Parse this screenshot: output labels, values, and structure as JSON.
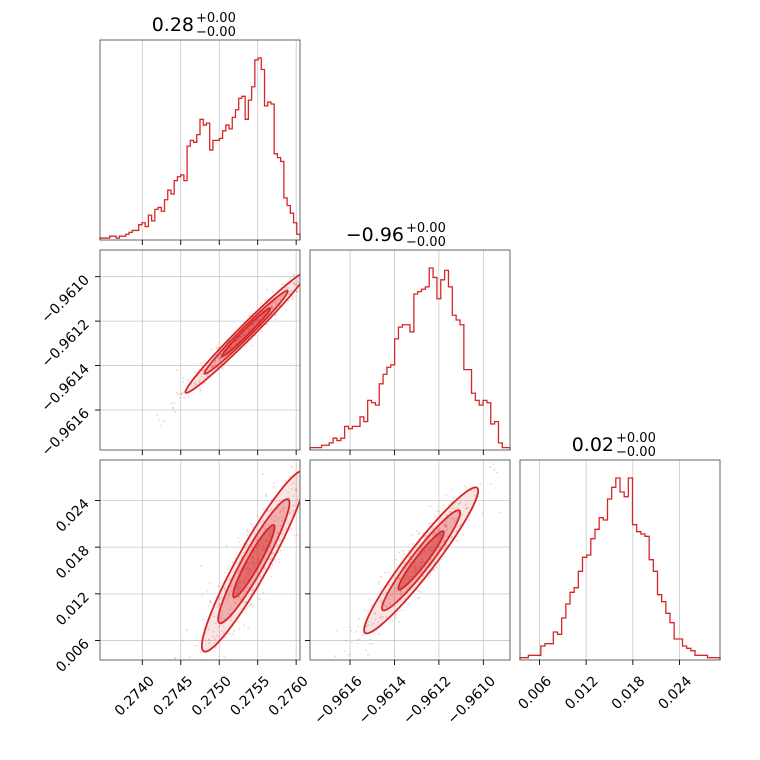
{
  "chart_data": {
    "type": "corner",
    "color": "#d62728",
    "parameters": [
      {
        "title": "0.28",
        "sup": "+0.00",
        "sub": "−0.00",
        "range": [
          0.27345,
          0.27605
        ],
        "ticks": [
          0.274,
          0.2745,
          0.275,
          0.2755,
          0.276
        ],
        "tick_labels": [
          "0.2740",
          "0.2745",
          "0.2750",
          "0.2755",
          "0.2760"
        ]
      },
      {
        "title": "−0.96",
        "sup": "+0.00",
        "sub": "−0.00",
        "range": [
          -0.96178,
          -0.96088
        ],
        "ticks": [
          -0.9616,
          -0.9614,
          -0.9612,
          -0.961
        ],
        "tick_labels": [
          "−0.9616",
          "−0.9614",
          "−0.9612",
          "−0.9610"
        ]
      },
      {
        "title": "0.02",
        "sup": "+0.00",
        "sub": "−0.00",
        "range": [
          0.0035,
          0.0292
        ],
        "ticks": [
          0.006,
          0.012,
          0.018,
          0.024
        ],
        "tick_labels": [
          "0.006",
          "0.012",
          "0.018",
          "0.024"
        ]
      }
    ],
    "histograms": [
      {
        "param": 0,
        "counts": [
          1,
          1,
          1,
          2,
          2,
          1,
          2,
          2,
          3,
          4,
          5,
          5,
          8,
          9,
          7,
          13,
          10,
          16,
          17,
          15,
          21,
          26,
          24,
          31,
          33,
          34,
          31,
          49,
          52,
          51,
          55,
          63,
          60,
          61,
          47,
          52,
          52,
          53,
          57,
          60,
          58,
          64,
          68,
          74,
          75,
          63,
          73,
          80,
          94,
          95,
          89,
          70,
          72,
          71,
          45,
          43,
          41,
          22,
          18,
          14,
          9,
          3
        ]
      },
      {
        "param": 1,
        "counts": [
          1,
          1,
          1,
          2,
          2,
          3,
          5,
          4,
          5,
          10,
          9,
          10,
          10,
          14,
          12,
          21,
          20,
          19,
          28,
          32,
          35,
          36,
          47,
          52,
          53,
          53,
          50,
          66,
          67,
          68,
          69,
          77,
          73,
          64,
          72,
          76,
          69,
          57,
          55,
          53,
          34,
          34,
          24,
          21,
          19,
          21,
          20,
          11,
          12,
          3,
          1,
          1
        ]
      },
      {
        "param": 2,
        "counts": [
          1,
          1,
          2,
          2,
          2,
          6,
          7,
          7,
          12,
          11,
          18,
          24,
          29,
          31,
          38,
          44,
          45,
          52,
          56,
          61,
          60,
          69,
          74,
          78,
          72,
          70,
          78,
          58,
          55,
          54,
          53,
          43,
          38,
          28,
          25,
          20,
          16,
          9,
          9,
          6,
          5,
          4,
          2,
          2,
          2,
          1,
          1,
          1
        ]
      }
    ],
    "pairs": [
      {
        "x_param": 0,
        "y_param": 1,
        "ellipse_center": [
          0.27535,
          -0.96125
        ],
        "ellipse_semi_axes": [
          0.00075,
          1.5e-05
        ],
        "slope": 0.346,
        "contours": 3
      },
      {
        "x_param": 0,
        "y_param": 2,
        "ellipse_center": [
          0.27545,
          0.0162
        ],
        "ellipse_semi_axes": [
          0.00062,
          0.0016
        ],
        "slope": 17.8,
        "contours": 3
      },
      {
        "x_param": 1,
        "y_param": 2,
        "ellipse_center": [
          -0.96128,
          0.0163
        ],
        "ellipse_semi_axes": [
          0.00024,
          0.0013
        ],
        "slope": 37.0,
        "contours": 3
      }
    ],
    "grid": true
  }
}
